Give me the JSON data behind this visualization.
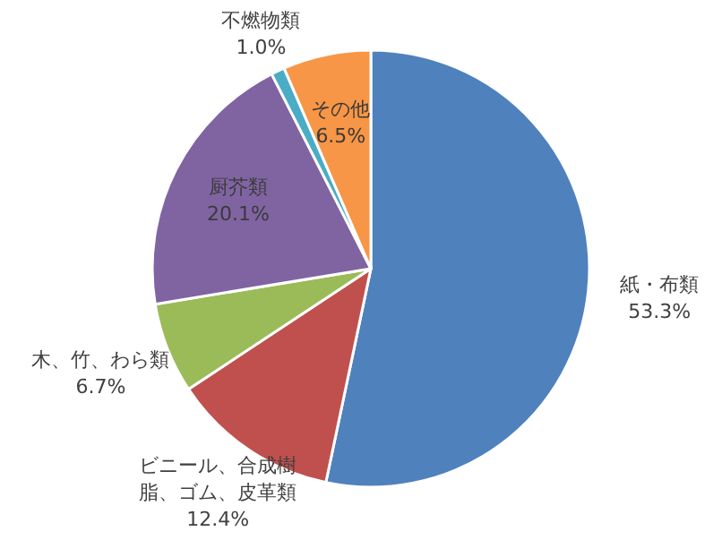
{
  "chart_data": {
    "type": "pie",
    "categories": [
      "紙・布類",
      "ビニール、合成樹脂、ゴム、皮革類",
      "木、竹、わら類",
      "厨芥類",
      "不燃物類",
      "その他"
    ],
    "values": [
      53.3,
      12.4,
      6.7,
      20.1,
      1.0,
      6.5
    ],
    "value_labels": [
      "53.3%",
      "12.4%",
      "6.7%",
      "20.1%",
      "1.0%",
      "6.5%"
    ],
    "colors": [
      "#4f81bd",
      "#c0504d",
      "#9bbb59",
      "#8064a2",
      "#4bacc6",
      "#f79646"
    ]
  }
}
